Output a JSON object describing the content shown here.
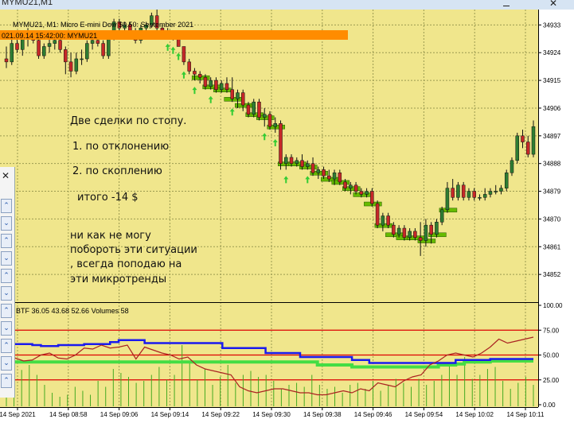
{
  "window": {
    "title": "MYMU21,M1"
  },
  "chart_header": "MYMU21, M1:  Micro E-mini Dow $0.50: September 2021",
  "order_label": "021.09.14 15:42:00: MYMU21",
  "annotation": {
    "line1": "Две сделки  по стопу.",
    "line2": "1. по отклонению",
    "line3": "2. по скоплению",
    "line4": "итого -14 $",
    "line5": "ни как не могу",
    "line6": "побороть эти ситуации",
    "line7": ", всегда поподаю на",
    "line8": "эти микротренды"
  },
  "indicator_label": "BTF 36.05 43.68 52.66 Volumes 58",
  "colors": {
    "background": "#f0e68c",
    "grid": "#9a9a50",
    "bull_candle": "#2e7d32",
    "bear_candle": "#c62828",
    "order_bar": "#ff8c00",
    "cluster_box": "#66bb00",
    "up_arrow": "#33cc33",
    "blue_line": "#1a1aee",
    "green_line": "#44dd44",
    "dark_red_line": "#aa2222",
    "level_line": "#dd0000",
    "volume_bar": "#44aa22"
  },
  "chart_data": [
    {
      "type": "candlestick",
      "symbol": "MYMU21",
      "timeframe": "M1",
      "ylim": [
        34843,
        34938
      ],
      "y_ticks": [
        "34933",
        "34924",
        "34915",
        "34906",
        "34897",
        "34888",
        "34879",
        "34870",
        "34861",
        "34852"
      ],
      "x_ticks": [
        "14 Sep 2021",
        "14 Sep 08:58",
        "14 Sep 09:06",
        "14 Sep 09:14",
        "14 Sep 09:22",
        "14 Sep 09:30",
        "14 Sep 09:38",
        "14 Sep 09:46",
        "14 Sep 09:54",
        "14 Sep 10:02",
        "14 Sep 10:11"
      ],
      "candles": [
        {
          "o": 34922,
          "h": 34926,
          "l": 34919,
          "c": 34921
        },
        {
          "o": 34921,
          "h": 34929,
          "l": 34920,
          "c": 34927
        },
        {
          "o": 34927,
          "h": 34930,
          "l": 34924,
          "c": 34925
        },
        {
          "o": 34925,
          "h": 34930,
          "l": 34923,
          "c": 34929
        },
        {
          "o": 34929,
          "h": 34932,
          "l": 34926,
          "c": 34930
        },
        {
          "o": 34930,
          "h": 34931,
          "l": 34927,
          "c": 34928
        },
        {
          "o": 34928,
          "h": 34929,
          "l": 34922,
          "c": 34923
        },
        {
          "o": 34923,
          "h": 34927,
          "l": 34922,
          "c": 34926
        },
        {
          "o": 34926,
          "h": 34929,
          "l": 34924,
          "c": 34927
        },
        {
          "o": 34927,
          "h": 34929,
          "l": 34925,
          "c": 34928
        },
        {
          "o": 34928,
          "h": 34929,
          "l": 34924,
          "c": 34925
        },
        {
          "o": 34925,
          "h": 34926,
          "l": 34917,
          "c": 34921
        },
        {
          "o": 34921,
          "h": 34924,
          "l": 34916,
          "c": 34918
        },
        {
          "o": 34918,
          "h": 34924,
          "l": 34917,
          "c": 34922
        },
        {
          "o": 34922,
          "h": 34925,
          "l": 34920,
          "c": 34922
        },
        {
          "o": 34922,
          "h": 34928,
          "l": 34921,
          "c": 34927
        },
        {
          "o": 34927,
          "h": 34929,
          "l": 34925,
          "c": 34928
        },
        {
          "o": 34928,
          "h": 34929,
          "l": 34926,
          "c": 34927
        },
        {
          "o": 34927,
          "h": 34928,
          "l": 34922,
          "c": 34923
        },
        {
          "o": 34923,
          "h": 34930,
          "l": 34922,
          "c": 34929
        },
        {
          "o": 34929,
          "h": 34935,
          "l": 34928,
          "c": 34934
        },
        {
          "o": 34934,
          "h": 34935,
          "l": 34931,
          "c": 34932
        },
        {
          "o": 34932,
          "h": 34934,
          "l": 34929,
          "c": 34933
        },
        {
          "o": 34933,
          "h": 34934,
          "l": 34930,
          "c": 34931
        },
        {
          "o": 34931,
          "h": 34932,
          "l": 34927,
          "c": 34928
        },
        {
          "o": 34928,
          "h": 34933,
          "l": 34927,
          "c": 34932
        },
        {
          "o": 34932,
          "h": 34934,
          "l": 34931,
          "c": 34933
        },
        {
          "o": 34933,
          "h": 34937,
          "l": 34932,
          "c": 34936
        },
        {
          "o": 34936,
          "h": 34938,
          "l": 34931,
          "c": 34932
        },
        {
          "o": 34932,
          "h": 34933,
          "l": 34930,
          "c": 34931
        },
        {
          "o": 34931,
          "h": 34932,
          "l": 34929,
          "c": 34930
        },
        {
          "o": 34930,
          "h": 34931,
          "l": 34928,
          "c": 34929
        },
        {
          "o": 34929,
          "h": 34930,
          "l": 34926,
          "c": 34926
        },
        {
          "o": 34926,
          "h": 34926,
          "l": 34920,
          "c": 34921
        },
        {
          "o": 34921,
          "h": 34922,
          "l": 34917,
          "c": 34918
        },
        {
          "o": 34918,
          "h": 34919,
          "l": 34915,
          "c": 34917
        },
        {
          "o": 34917,
          "h": 34918,
          "l": 34914,
          "c": 34916
        },
        {
          "o": 34916,
          "h": 34917,
          "l": 34912,
          "c": 34913
        },
        {
          "o": 34913,
          "h": 34916,
          "l": 34912,
          "c": 34915
        },
        {
          "o": 34915,
          "h": 34916,
          "l": 34911,
          "c": 34912
        },
        {
          "o": 34912,
          "h": 34915,
          "l": 34911,
          "c": 34914
        },
        {
          "o": 34914,
          "h": 34916,
          "l": 34911,
          "c": 34912
        },
        {
          "o": 34912,
          "h": 34916,
          "l": 34908,
          "c": 34909
        },
        {
          "o": 34909,
          "h": 34912,
          "l": 34906,
          "c": 34911
        },
        {
          "o": 34911,
          "h": 34912,
          "l": 34905,
          "c": 34907
        },
        {
          "o": 34907,
          "h": 34908,
          "l": 34903,
          "c": 34904
        },
        {
          "o": 34904,
          "h": 34909,
          "l": 34903,
          "c": 34908
        },
        {
          "o": 34908,
          "h": 34909,
          "l": 34902,
          "c": 34903
        },
        {
          "o": 34903,
          "h": 34906,
          "l": 34900,
          "c": 34904
        },
        {
          "o": 34904,
          "h": 34905,
          "l": 34899,
          "c": 34900
        },
        {
          "o": 34900,
          "h": 34903,
          "l": 34898,
          "c": 34901
        },
        {
          "o": 34901,
          "h": 34902,
          "l": 34886,
          "c": 34888
        },
        {
          "o": 34888,
          "h": 34891,
          "l": 34886,
          "c": 34890
        },
        {
          "o": 34890,
          "h": 34891,
          "l": 34887,
          "c": 34888
        },
        {
          "o": 34888,
          "h": 34890,
          "l": 34887,
          "c": 34889
        },
        {
          "o": 34889,
          "h": 34891,
          "l": 34886,
          "c": 34887
        },
        {
          "o": 34887,
          "h": 34889,
          "l": 34886,
          "c": 34888
        },
        {
          "o": 34888,
          "h": 34890,
          "l": 34884,
          "c": 34885
        },
        {
          "o": 34885,
          "h": 34887,
          "l": 34883,
          "c": 34886
        },
        {
          "o": 34886,
          "h": 34887,
          "l": 34883,
          "c": 34884
        },
        {
          "o": 34884,
          "h": 34886,
          "l": 34882,
          "c": 34883
        },
        {
          "o": 34883,
          "h": 34886,
          "l": 34881,
          "c": 34885
        },
        {
          "o": 34885,
          "h": 34886,
          "l": 34881,
          "c": 34882
        },
        {
          "o": 34882,
          "h": 34883,
          "l": 34879,
          "c": 34880
        },
        {
          "o": 34880,
          "h": 34882,
          "l": 34878,
          "c": 34881
        },
        {
          "o": 34881,
          "h": 34882,
          "l": 34878,
          "c": 34879
        },
        {
          "o": 34879,
          "h": 34880,
          "l": 34877,
          "c": 34878
        },
        {
          "o": 34878,
          "h": 34880,
          "l": 34877,
          "c": 34879
        },
        {
          "o": 34879,
          "h": 34880,
          "l": 34874,
          "c": 34875
        },
        {
          "o": 34875,
          "h": 34876,
          "l": 34867,
          "c": 34868
        },
        {
          "o": 34868,
          "h": 34872,
          "l": 34866,
          "c": 34871
        },
        {
          "o": 34871,
          "h": 34872,
          "l": 34867,
          "c": 34868
        },
        {
          "o": 34868,
          "h": 34869,
          "l": 34864,
          "c": 34865
        },
        {
          "o": 34865,
          "h": 34868,
          "l": 34864,
          "c": 34867
        },
        {
          "o": 34867,
          "h": 34868,
          "l": 34863,
          "c": 34864
        },
        {
          "o": 34864,
          "h": 34867,
          "l": 34863,
          "c": 34866
        },
        {
          "o": 34866,
          "h": 34867,
          "l": 34863,
          "c": 34864
        },
        {
          "o": 34864,
          "h": 34869,
          "l": 34858,
          "c": 34863
        },
        {
          "o": 34863,
          "h": 34870,
          "l": 34861,
          "c": 34868
        },
        {
          "o": 34868,
          "h": 34869,
          "l": 34862,
          "c": 34865
        },
        {
          "o": 34865,
          "h": 34870,
          "l": 34864,
          "c": 34869
        },
        {
          "o": 34869,
          "h": 34874,
          "l": 34868,
          "c": 34873
        },
        {
          "o": 34873,
          "h": 34882,
          "l": 34872,
          "c": 34880
        },
        {
          "o": 34880,
          "h": 34883,
          "l": 34876,
          "c": 34877
        },
        {
          "o": 34877,
          "h": 34882,
          "l": 34876,
          "c": 34881
        },
        {
          "o": 34881,
          "h": 34882,
          "l": 34876,
          "c": 34877
        },
        {
          "o": 34877,
          "h": 34880,
          "l": 34876,
          "c": 34879
        },
        {
          "o": 34879,
          "h": 34880,
          "l": 34876,
          "c": 34877
        },
        {
          "o": 34877,
          "h": 34878,
          "l": 34876,
          "c": 34877
        },
        {
          "o": 34877,
          "h": 34880,
          "l": 34876,
          "c": 34878
        },
        {
          "o": 34878,
          "h": 34880,
          "l": 34877,
          "c": 34879
        },
        {
          "o": 34879,
          "h": 34881,
          "l": 34878,
          "c": 34879
        },
        {
          "o": 34879,
          "h": 34881,
          "l": 34878,
          "c": 34880
        },
        {
          "o": 34880,
          "h": 34886,
          "l": 34879,
          "c": 34885
        },
        {
          "o": 34885,
          "h": 34890,
          "l": 34884,
          "c": 34889
        },
        {
          "o": 34889,
          "h": 34898,
          "l": 34888,
          "c": 34897
        },
        {
          "o": 34897,
          "h": 34899,
          "l": 34893,
          "c": 34895
        },
        {
          "o": 34895,
          "h": 34897,
          "l": 34890,
          "c": 34891
        },
        {
          "o": 34891,
          "h": 34902,
          "l": 34890,
          "c": 34900
        }
      ]
    },
    {
      "type": "line",
      "name": "BTF",
      "ylim": [
        0,
        100
      ],
      "y_ticks": [
        "100.00",
        "75.00",
        "50.00",
        "25.00",
        "0.00"
      ],
      "levels": [
        75,
        50,
        25
      ],
      "series": [
        {
          "name": "blue",
          "values": [
            61,
            61,
            61,
            60,
            59,
            59,
            60,
            60,
            60,
            61,
            61,
            61,
            63,
            65,
            65,
            65,
            62,
            62,
            62,
            62,
            62,
            62,
            62,
            62,
            62,
            57,
            57,
            57,
            57,
            57,
            52,
            52,
            52,
            52,
            48,
            48,
            48,
            48,
            48,
            48,
            45,
            45,
            42,
            42,
            42,
            42,
            42,
            42,
            42,
            42,
            42,
            42,
            45,
            45,
            45,
            45,
            46,
            46,
            46,
            46,
            46,
            46
          ]
        },
        {
          "name": "green",
          "values": [
            43,
            43,
            43,
            43,
            43,
            43,
            43,
            43,
            43,
            43,
            43,
            43,
            43,
            43,
            43,
            43,
            43,
            43,
            43,
            43,
            43,
            43,
            43,
            43,
            43,
            43,
            43,
            43,
            43,
            43,
            43,
            43,
            43,
            43,
            43,
            43,
            40,
            40,
            40,
            40,
            38,
            38,
            38,
            38,
            38,
            38,
            38,
            38,
            38,
            38,
            40,
            40,
            41,
            43,
            43,
            43,
            44,
            44,
            44,
            44,
            44,
            44
          ]
        },
        {
          "name": "dark_red",
          "values": [
            48,
            47,
            44,
            45,
            50,
            52,
            47,
            46,
            50,
            57,
            56,
            60,
            57,
            58,
            60,
            46,
            58,
            55,
            52,
            50,
            46,
            48,
            40,
            36,
            34,
            32,
            30,
            18,
            14,
            12,
            14,
            16,
            16,
            14,
            12,
            12,
            10,
            10,
            12,
            14,
            12,
            16,
            14,
            22,
            20,
            18,
            24,
            28,
            30,
            40,
            44,
            50,
            52,
            50,
            48,
            52,
            58,
            66,
            62,
            64,
            66,
            68
          ]
        }
      ]
    },
    {
      "type": "bar",
      "name": "Volumes",
      "values": [
        16,
        30,
        35,
        40,
        30,
        20,
        12,
        8,
        10,
        18,
        14,
        10,
        24,
        18,
        36,
        32,
        28,
        22,
        24,
        30,
        38,
        25,
        30,
        60,
        44,
        25,
        36,
        20,
        28,
        40,
        22,
        30,
        34,
        28,
        30,
        24,
        16,
        20,
        22,
        18,
        30,
        20,
        16,
        18,
        12,
        20,
        22,
        16,
        24,
        14,
        20,
        26,
        22,
        18,
        26,
        20,
        24,
        30,
        42,
        30,
        48,
        26,
        30,
        36,
        38,
        24,
        16,
        22,
        28,
        20
      ]
    }
  ]
}
